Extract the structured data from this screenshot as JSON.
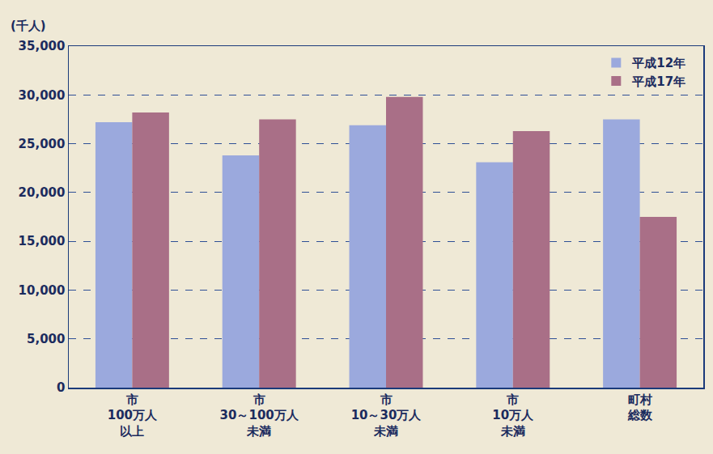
{
  "chart_data": {
    "type": "bar",
    "y_label": "(千人)",
    "categories": [
      "市\n100万人\n以上",
      "市\n30～100万人\n未満",
      "市\n10～30万人\n未満",
      "市\n10万人\n未満",
      "町村\n総数"
    ],
    "series": [
      {
        "name": "平成12年",
        "color": "#9ba9dd",
        "values": [
          27200,
          23800,
          26900,
          23100,
          27500
        ]
      },
      {
        "name": "平成17年",
        "color": "#a96f87",
        "values": [
          28200,
          27500,
          29800,
          26300,
          17500
        ]
      }
    ],
    "ylim": [
      0,
      35000
    ],
    "yticks": [
      0,
      {
        "value": 5000,
        "label": "5,000"
      },
      {
        "value": 10000,
        "label": "10,000"
      },
      {
        "value": 15000,
        "label": "15,000"
      },
      {
        "value": 20000,
        "label": "20,000"
      },
      {
        "value": 25000,
        "label": "25,000"
      },
      {
        "value": 30000,
        "label": "30,000"
      },
      {
        "value": 35000,
        "label": "35,000"
      }
    ],
    "grid": true,
    "legend": "top-right"
  }
}
